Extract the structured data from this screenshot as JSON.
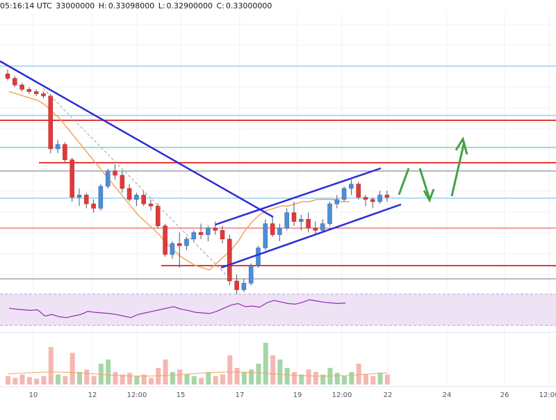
{
  "header": {
    "time": "05:16:14 UTC",
    "open_partial": "33000000",
    "high_label": "H:",
    "high_value": "0.33098000",
    "low_label": "L:",
    "low_value": "0.32900000",
    "close_label": "C:",
    "close_value": "0.33000000"
  },
  "colors": {
    "up": "#26a69a",
    "up_fill": "#4d8fd6",
    "down": "#ef5350",
    "down_fill": "#e03a3a",
    "trendline": "#2b2bd6",
    "ma": "#f5a25d",
    "support_resistance": "#e53935",
    "fib_blue": "#64b5f6",
    "fib_teal": "#4db6ac",
    "fib_gray": "#787b86",
    "rsi_line": "#9c27b0",
    "rsi_band": "#ede3f5",
    "projection_arrows": "#43a047"
  },
  "chart_data": {
    "type": "candlestick",
    "x_tick_labels": [
      "10",
      "12",
      "12:00",
      "15",
      "17",
      "19",
      "12:00",
      "22",
      "24",
      "26",
      "12:00"
    ],
    "grid": true,
    "y_axis_labels": "not visible",
    "candles_normalized_price": [
      [
        0.88,
        0.9,
        0.85,
        0.86
      ],
      [
        0.86,
        0.87,
        0.82,
        0.83
      ],
      [
        0.83,
        0.84,
        0.8,
        0.81
      ],
      [
        0.81,
        0.82,
        0.79,
        0.8
      ],
      [
        0.8,
        0.81,
        0.78,
        0.79
      ],
      [
        0.79,
        0.8,
        0.77,
        0.78
      ],
      [
        0.78,
        0.79,
        0.52,
        0.54
      ],
      [
        0.54,
        0.58,
        0.52,
        0.56
      ],
      [
        0.56,
        0.57,
        0.48,
        0.49
      ],
      [
        0.49,
        0.5,
        0.3,
        0.32
      ],
      [
        0.32,
        0.36,
        0.28,
        0.33
      ],
      [
        0.33,
        0.34,
        0.27,
        0.29
      ],
      [
        0.29,
        0.31,
        0.25,
        0.27
      ],
      [
        0.27,
        0.38,
        0.26,
        0.37
      ],
      [
        0.37,
        0.45,
        0.36,
        0.44
      ],
      [
        0.44,
        0.47,
        0.4,
        0.42
      ],
      [
        0.42,
        0.44,
        0.34,
        0.36
      ],
      [
        0.36,
        0.38,
        0.3,
        0.31
      ],
      [
        0.31,
        0.34,
        0.28,
        0.33
      ],
      [
        0.33,
        0.35,
        0.28,
        0.29
      ],
      [
        0.29,
        0.31,
        0.26,
        0.28
      ],
      [
        0.28,
        0.29,
        0.18,
        0.19
      ],
      [
        0.19,
        0.2,
        0.05,
        0.06
      ],
      [
        0.06,
        0.12,
        0.04,
        0.11
      ],
      [
        0.11,
        0.16,
        0.0,
        0.1
      ],
      [
        0.1,
        0.14,
        0.08,
        0.13
      ],
      [
        0.13,
        0.17,
        0.12,
        0.16
      ],
      [
        0.16,
        0.2,
        0.13,
        0.15
      ],
      [
        0.15,
        0.19,
        0.12,
        0.18
      ],
      [
        0.18,
        0.21,
        0.15,
        0.17
      ],
      [
        0.17,
        0.19,
        0.11,
        0.13
      ],
      [
        0.13,
        0.15,
        -0.08,
        -0.06
      ],
      [
        -0.06,
        -0.03,
        -0.12,
        -0.1
      ],
      [
        -0.1,
        -0.05,
        -0.11,
        -0.07
      ],
      [
        -0.07,
        0.02,
        -0.08,
        0.01
      ],
      [
        0.01,
        0.1,
        0.0,
        0.09
      ],
      [
        0.09,
        0.22,
        0.08,
        0.2
      ],
      [
        0.2,
        0.23,
        0.14,
        0.15
      ],
      [
        0.15,
        0.2,
        0.12,
        0.18
      ],
      [
        0.18,
        0.27,
        0.17,
        0.25
      ],
      [
        0.25,
        0.3,
        0.19,
        0.21
      ],
      [
        0.21,
        0.24,
        0.17,
        0.22
      ],
      [
        0.22,
        0.25,
        0.16,
        0.18
      ],
      [
        0.18,
        0.21,
        0.15,
        0.17
      ],
      [
        0.17,
        0.22,
        0.16,
        0.2
      ],
      [
        0.2,
        0.3,
        0.19,
        0.29
      ],
      [
        0.29,
        0.33,
        0.27,
        0.31
      ],
      [
        0.31,
        0.37,
        0.3,
        0.36
      ],
      [
        0.36,
        0.4,
        0.33,
        0.38
      ],
      [
        0.38,
        0.39,
        0.31,
        0.32
      ],
      [
        0.32,
        0.33,
        0.28,
        0.31
      ],
      [
        0.31,
        0.32,
        0.27,
        0.3
      ],
      [
        0.3,
        0.35,
        0.29,
        0.33
      ],
      [
        0.33,
        0.35,
        0.3,
        0.32
      ]
    ],
    "moving_average_normalized": [
      0.8,
      0.79,
      0.78,
      0.77,
      0.76,
      0.74,
      0.71,
      0.68,
      0.64,
      0.6,
      0.56,
      0.52,
      0.48,
      0.44,
      0.4,
      0.36,
      0.32,
      0.28,
      0.24,
      0.21,
      0.18,
      0.15,
      0.11,
      0.08,
      0.05,
      0.03,
      0.01,
      0.0,
      -0.01,
      0.02,
      0.05,
      0.08,
      0.12,
      0.17,
      0.21,
      0.24,
      0.26,
      0.27,
      0.28,
      0.28,
      0.29,
      0.3,
      0.3,
      0.31,
      0.31,
      0.31,
      0.3,
      0.3
    ],
    "rsi_normalized": [
      0.55,
      0.52,
      0.5,
      0.48,
      0.5,
      0.3,
      0.35,
      0.28,
      0.25,
      0.3,
      0.35,
      0.45,
      0.42,
      0.4,
      0.38,
      0.35,
      0.3,
      0.25,
      0.35,
      0.4,
      0.45,
      0.5,
      0.55,
      0.6,
      0.52,
      0.48,
      0.42,
      0.4,
      0.38,
      0.45,
      0.55,
      0.65,
      0.7,
      0.6,
      0.62,
      0.58,
      0.72,
      0.8,
      0.75,
      0.7,
      0.68,
      0.74,
      0.82,
      0.78,
      0.74,
      0.72,
      0.7,
      0.72
    ],
    "volume_normalized": [
      0.1,
      0.08,
      0.12,
      0.09,
      0.07,
      0.1,
      0.45,
      0.12,
      0.1,
      0.38,
      0.15,
      0.18,
      0.1,
      0.25,
      0.3,
      0.15,
      0.12,
      0.14,
      0.1,
      0.12,
      0.08,
      0.2,
      0.3,
      0.15,
      0.18,
      0.12,
      0.1,
      0.08,
      0.15,
      0.1,
      0.12,
      0.35,
      0.2,
      0.15,
      0.18,
      0.25,
      0.5,
      0.35,
      0.3,
      0.2,
      0.15,
      0.12,
      0.18,
      0.15,
      0.12,
      0.2,
      0.14,
      0.1,
      0.15,
      0.25,
      0.12,
      0.1,
      0.14,
      0.12
    ]
  }
}
